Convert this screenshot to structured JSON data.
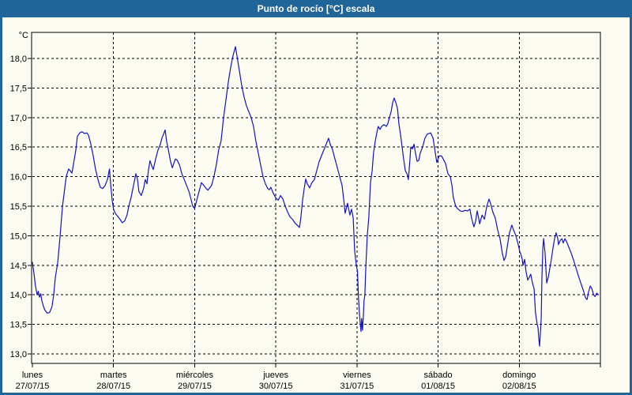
{
  "window": {
    "title": "Punto de rocío [°C] escala"
  },
  "colors": {
    "titlebar": "#1F6598",
    "frame": "#1F6598",
    "content_bg": "#FCFCF3",
    "line": "#1212C8",
    "grid": "#000000",
    "text": "#000000"
  },
  "chart_data": {
    "type": "line",
    "title": "Punto de rocío [°C] escala",
    "unit_label": "°C",
    "ylim": [
      12.85,
      18.45
    ],
    "x_range_hours": [
      0,
      168
    ],
    "grid": "dashed",
    "legend": "none",
    "yticks": [
      18.0,
      17.5,
      17.0,
      16.5,
      16.0,
      15.5,
      15.0,
      14.5,
      14.0,
      13.5,
      13.0
    ],
    "ytick_labels": [
      "18,0",
      "17,5",
      "17,0",
      "16,5",
      "16,0",
      "15,5",
      "15,0",
      "14,5",
      "14,0",
      "13,5",
      "13,0"
    ],
    "x_axis": {
      "day_labels": [
        {
          "name": "lunes",
          "date": "27/07/15"
        },
        {
          "name": "martes",
          "date": "28/07/15"
        },
        {
          "name": "miércoles",
          "date": "29/07/15"
        },
        {
          "name": "jueves",
          "date": "30/07/15"
        },
        {
          "name": "viernes",
          "date": "31/07/15"
        },
        {
          "name": "sábado",
          "date": "01/08/15"
        },
        {
          "name": "domingo",
          "date": "02/08/15"
        }
      ]
    },
    "series": [
      {
        "name": "Punto de rocío [°C]",
        "color": "#1212C8",
        "points": [
          [
            0,
            14.55
          ],
          [
            0.5,
            14.35
          ],
          [
            0.9,
            14.15
          ],
          [
            1.4,
            14.0
          ],
          [
            1.75,
            14.06
          ],
          [
            2.1,
            13.96
          ],
          [
            2.45,
            14.02
          ],
          [
            2.8,
            13.9
          ],
          [
            3.3,
            13.8
          ],
          [
            3.7,
            13.74
          ],
          [
            4.4,
            13.69
          ],
          [
            5.1,
            13.7
          ],
          [
            5.8,
            13.8
          ],
          [
            6.3,
            14.0
          ],
          [
            6.8,
            14.3
          ],
          [
            7.5,
            14.55
          ],
          [
            8.2,
            15.0
          ],
          [
            8.9,
            15.5
          ],
          [
            10,
            16.0
          ],
          [
            10.7,
            16.13
          ],
          [
            11.2,
            16.1
          ],
          [
            11.7,
            16.06
          ],
          [
            12.4,
            16.3
          ],
          [
            12.85,
            16.45
          ],
          [
            13.3,
            16.68
          ],
          [
            14,
            16.74
          ],
          [
            14.7,
            16.76
          ],
          [
            15.4,
            16.73
          ],
          [
            16.1,
            16.74
          ],
          [
            16.6,
            16.7
          ],
          [
            17.3,
            16.55
          ],
          [
            18,
            16.35
          ],
          [
            18.7,
            16.12
          ],
          [
            19.4,
            15.95
          ],
          [
            20.1,
            15.82
          ],
          [
            20.8,
            15.8
          ],
          [
            21.5,
            15.85
          ],
          [
            22.2,
            15.95
          ],
          [
            22.8,
            16.13
          ],
          [
            23.1,
            15.9
          ],
          [
            23.6,
            15.6
          ],
          [
            24,
            15.45
          ],
          [
            24.5,
            15.38
          ],
          [
            25.2,
            15.33
          ],
          [
            25.9,
            15.28
          ],
          [
            26.6,
            15.22
          ],
          [
            27.3,
            15.25
          ],
          [
            28,
            15.35
          ],
          [
            28.5,
            15.5
          ],
          [
            29.2,
            15.65
          ],
          [
            29.9,
            15.85
          ],
          [
            30.6,
            16.05
          ],
          [
            31.1,
            15.95
          ],
          [
            31.5,
            15.75
          ],
          [
            32.2,
            15.68
          ],
          [
            32.9,
            15.8
          ],
          [
            33.4,
            15.95
          ],
          [
            33.9,
            15.88
          ],
          [
            34.3,
            16.1
          ],
          [
            34.8,
            16.27
          ],
          [
            35.3,
            16.18
          ],
          [
            35.75,
            16.12
          ],
          [
            36.45,
            16.3
          ],
          [
            37.15,
            16.45
          ],
          [
            37.85,
            16.55
          ],
          [
            38.3,
            16.65
          ],
          [
            38.8,
            16.72
          ],
          [
            39.25,
            16.79
          ],
          [
            39.7,
            16.6
          ],
          [
            40.4,
            16.4
          ],
          [
            40.9,
            16.25
          ],
          [
            41.4,
            16.15
          ],
          [
            41.8,
            16.22
          ],
          [
            42.3,
            16.3
          ],
          [
            42.8,
            16.28
          ],
          [
            43.5,
            16.2
          ],
          [
            44.2,
            16.05
          ],
          [
            44.9,
            15.95
          ],
          [
            45.6,
            15.85
          ],
          [
            46.3,
            15.75
          ],
          [
            47,
            15.6
          ],
          [
            47.4,
            15.5
          ],
          [
            48,
            15.46
          ],
          [
            48.6,
            15.6
          ],
          [
            49.3,
            15.75
          ],
          [
            50,
            15.9
          ],
          [
            50.7,
            15.85
          ],
          [
            51.4,
            15.8
          ],
          [
            51.9,
            15.77
          ],
          [
            52.3,
            15.8
          ],
          [
            53,
            15.85
          ],
          [
            53.7,
            16.0
          ],
          [
            54.4,
            16.2
          ],
          [
            55.1,
            16.45
          ],
          [
            55.8,
            16.6
          ],
          [
            56.55,
            17.0
          ],
          [
            57.25,
            17.3
          ],
          [
            57.95,
            17.6
          ],
          [
            58.65,
            17.85
          ],
          [
            59.35,
            18.05
          ],
          [
            60.05,
            18.2
          ],
          [
            60.5,
            18.05
          ],
          [
            61.2,
            17.8
          ],
          [
            61.9,
            17.55
          ],
          [
            62.6,
            17.35
          ],
          [
            63.3,
            17.2
          ],
          [
            64,
            17.1
          ],
          [
            64.7,
            17.0
          ],
          [
            65.4,
            16.85
          ],
          [
            66.1,
            16.6
          ],
          [
            66.8,
            16.4
          ],
          [
            67.5,
            16.2
          ],
          [
            68.2,
            16.0
          ],
          [
            68.9,
            15.88
          ],
          [
            69.6,
            15.8
          ],
          [
            70.1,
            15.78
          ],
          [
            70.55,
            15.82
          ],
          [
            71,
            15.75
          ],
          [
            71.7,
            15.67
          ],
          [
            72,
            15.64
          ],
          [
            72.7,
            15.6
          ],
          [
            73.4,
            15.68
          ],
          [
            74.1,
            15.62
          ],
          [
            74.8,
            15.5
          ],
          [
            75.5,
            15.4
          ],
          [
            76.2,
            15.32
          ],
          [
            76.9,
            15.28
          ],
          [
            77.6,
            15.22
          ],
          [
            78.3,
            15.18
          ],
          [
            79,
            15.14
          ],
          [
            79.4,
            15.3
          ],
          [
            79.9,
            15.6
          ],
          [
            80.4,
            15.8
          ],
          [
            80.85,
            15.96
          ],
          [
            81.3,
            15.88
          ],
          [
            82,
            15.81
          ],
          [
            82.7,
            15.9
          ],
          [
            83.4,
            15.95
          ],
          [
            84.1,
            16.1
          ],
          [
            84.8,
            16.25
          ],
          [
            85.5,
            16.35
          ],
          [
            86.2,
            16.45
          ],
          [
            86.9,
            16.55
          ],
          [
            87.6,
            16.65
          ],
          [
            88.1,
            16.55
          ],
          [
            88.8,
            16.45
          ],
          [
            89.5,
            16.3
          ],
          [
            90.2,
            16.15
          ],
          [
            90.9,
            16.0
          ],
          [
            91.6,
            15.85
          ],
          [
            92.1,
            15.6
          ],
          [
            92.5,
            15.38
          ],
          [
            93.2,
            15.55
          ],
          [
            93.9,
            15.35
          ],
          [
            94.4,
            15.45
          ],
          [
            94.9,
            15.3
          ],
          [
            95.3,
            14.75
          ],
          [
            95.8,
            14.5
          ],
          [
            96.15,
            14.4
          ],
          [
            96.4,
            14.0
          ],
          [
            96.7,
            13.7
          ],
          [
            97,
            13.5
          ],
          [
            97.2,
            13.38
          ],
          [
            97.4,
            13.6
          ],
          [
            97.65,
            13.4
          ],
          [
            97.9,
            13.65
          ],
          [
            98.1,
            13.9
          ],
          [
            98.35,
            14.0
          ],
          [
            98.6,
            14.45
          ],
          [
            99.05,
            15.0
          ],
          [
            99.5,
            15.3
          ],
          [
            100,
            15.9
          ],
          [
            100.5,
            16.1
          ],
          [
            100.9,
            16.4
          ],
          [
            101.4,
            16.6
          ],
          [
            101.9,
            16.75
          ],
          [
            102.3,
            16.85
          ],
          [
            102.8,
            16.8
          ],
          [
            103.3,
            16.85
          ],
          [
            104,
            16.88
          ],
          [
            104.7,
            16.85
          ],
          [
            105.15,
            16.9
          ],
          [
            105.6,
            17.0
          ],
          [
            106.1,
            17.1
          ],
          [
            106.55,
            17.25
          ],
          [
            107,
            17.33
          ],
          [
            107.5,
            17.25
          ],
          [
            108,
            17.15
          ],
          [
            108.4,
            16.9
          ],
          [
            108.9,
            16.7
          ],
          [
            109.35,
            16.5
          ],
          [
            109.8,
            16.3
          ],
          [
            110.3,
            16.1
          ],
          [
            110.8,
            16.05
          ],
          [
            111.2,
            15.95
          ],
          [
            111.7,
            16.3
          ],
          [
            111.9,
            16.5
          ],
          [
            112.4,
            16.47
          ],
          [
            112.9,
            16.55
          ],
          [
            113.3,
            16.4
          ],
          [
            113.8,
            16.26
          ],
          [
            114.3,
            16.28
          ],
          [
            114.7,
            16.4
          ],
          [
            115.4,
            16.5
          ],
          [
            116.1,
            16.65
          ],
          [
            116.8,
            16.72
          ],
          [
            117.8,
            16.74
          ],
          [
            118.5,
            16.65
          ],
          [
            118.9,
            16.5
          ],
          [
            119.6,
            16.24
          ],
          [
            120.3,
            16.35
          ],
          [
            121,
            16.35
          ],
          [
            121.7,
            16.28
          ],
          [
            122.2,
            16.22
          ],
          [
            122.9,
            16.05
          ],
          [
            123.6,
            16.0
          ],
          [
            124.1,
            15.85
          ],
          [
            124.5,
            15.65
          ],
          [
            125.2,
            15.5
          ],
          [
            125.9,
            15.45
          ],
          [
            126.6,
            15.42
          ],
          [
            127.3,
            15.41
          ],
          [
            128,
            15.43
          ],
          [
            128.7,
            15.42
          ],
          [
            129.4,
            15.45
          ],
          [
            129.9,
            15.3
          ],
          [
            130.6,
            15.15
          ],
          [
            131.1,
            15.25
          ],
          [
            131.55,
            15.42
          ],
          [
            132,
            15.3
          ],
          [
            132.3,
            15.2
          ],
          [
            133,
            15.35
          ],
          [
            133.7,
            15.28
          ],
          [
            134.4,
            15.5
          ],
          [
            135.05,
            15.62
          ],
          [
            135.5,
            15.55
          ],
          [
            136.2,
            15.4
          ],
          [
            136.9,
            15.3
          ],
          [
            137.6,
            15.1
          ],
          [
            138.3,
            14.95
          ],
          [
            139,
            14.7
          ],
          [
            139.5,
            14.58
          ],
          [
            140,
            14.65
          ],
          [
            140.4,
            14.8
          ],
          [
            141.1,
            15.05
          ],
          [
            141.8,
            15.18
          ],
          [
            142.3,
            15.1
          ],
          [
            143,
            15.0
          ],
          [
            143.7,
            14.85
          ],
          [
            144.2,
            14.72
          ],
          [
            144.4,
            14.7
          ],
          [
            144.9,
            14.6
          ],
          [
            145.1,
            14.5
          ],
          [
            145.6,
            14.6
          ],
          [
            146,
            14.4
          ],
          [
            146.5,
            14.25
          ],
          [
            147,
            14.3
          ],
          [
            147.4,
            14.35
          ],
          [
            147.9,
            14.2
          ],
          [
            148.4,
            14.1
          ],
          [
            148.8,
            13.7
          ],
          [
            149.3,
            13.5
          ],
          [
            149.55,
            13.45
          ],
          [
            149.8,
            13.25
          ],
          [
            150,
            13.13
          ],
          [
            150.2,
            13.3
          ],
          [
            150.5,
            13.6
          ],
          [
            150.7,
            14.3
          ],
          [
            151,
            14.8
          ],
          [
            151.2,
            14.95
          ],
          [
            151.65,
            14.7
          ],
          [
            152.1,
            14.2
          ],
          [
            152.6,
            14.3
          ],
          [
            153.05,
            14.45
          ],
          [
            153.5,
            14.6
          ],
          [
            154,
            14.8
          ],
          [
            154.45,
            14.95
          ],
          [
            154.9,
            15.05
          ],
          [
            155.4,
            14.95
          ],
          [
            155.6,
            14.85
          ],
          [
            156.1,
            14.92
          ],
          [
            156.6,
            14.95
          ],
          [
            157,
            14.88
          ],
          [
            157.5,
            14.95
          ],
          [
            158,
            14.9
          ],
          [
            158.7,
            14.8
          ],
          [
            159.4,
            14.7
          ],
          [
            160.1,
            14.58
          ],
          [
            160.8,
            14.45
          ],
          [
            161.5,
            14.32
          ],
          [
            162.2,
            14.2
          ],
          [
            162.9,
            14.08
          ],
          [
            163.6,
            13.95
          ],
          [
            164.05,
            13.92
          ],
          [
            164.5,
            14.05
          ],
          [
            165,
            14.15
          ],
          [
            165.5,
            14.1
          ],
          [
            166,
            14.0
          ],
          [
            166.4,
            13.97
          ],
          [
            166.9,
            14.03
          ],
          [
            167.4,
            14.0
          ]
        ]
      }
    ]
  }
}
